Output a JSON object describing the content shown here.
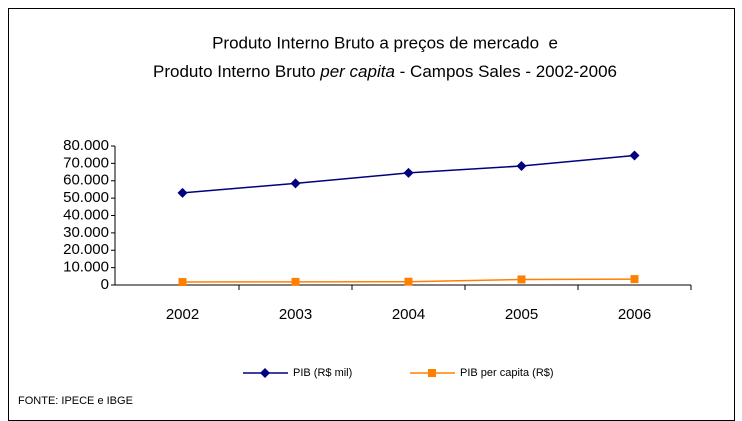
{
  "chart_data": {
    "type": "line",
    "title": [
      "Produto Interno Bruto a preços de mercado  e",
      [
        "Produto Interno Bruto ",
        "per capita",
        " - Campos Sales - 2002-2006"
      ]
    ],
    "categories": [
      "2002",
      "2003",
      "2004",
      "2005",
      "2006"
    ],
    "series": [
      {
        "name": "PIB (R$ mil)",
        "color": "#000080",
        "marker": "diamond",
        "values": [
          53000,
          58500,
          64500,
          68500,
          74500
        ]
      },
      {
        "name": "PIB per capita (R$)",
        "color": "#ff8000",
        "marker": "square",
        "values": [
          1700,
          1800,
          1900,
          3200,
          3400
        ]
      }
    ],
    "ylim": [
      0,
      80000
    ],
    "yticks": [
      0,
      {
        "value": 10000,
        "label": "10.000"
      },
      {
        "value": 20000,
        "label": "20.000"
      },
      {
        "value": 30000,
        "label": "30.000"
      },
      {
        "value": 40000,
        "label": "40.000"
      },
      {
        "value": 50000,
        "label": "50.000"
      },
      {
        "value": 60000,
        "label": "60.000"
      },
      {
        "value": 70000,
        "label": "70.000"
      },
      {
        "value": 80000,
        "label": "80.000"
      }
    ],
    "legend": "bottom",
    "source": "FONTE: IPECE e IBGE"
  }
}
